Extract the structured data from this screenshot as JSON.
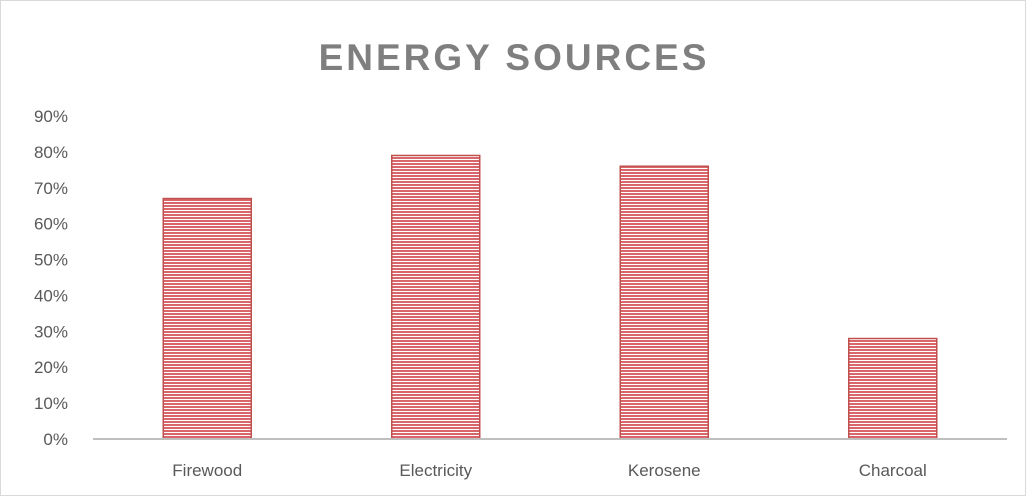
{
  "chart_data": {
    "type": "bar",
    "title": "ENERGY SOURCES",
    "categories": [
      "Firewood",
      "Electricity",
      "Kerosene",
      "Charcoal"
    ],
    "values": [
      0.67,
      0.79,
      0.76,
      0.28
    ],
    "ylim": [
      0,
      0.9
    ],
    "yticks": [
      "0%",
      "10%",
      "20%",
      "30%",
      "40%",
      "50%",
      "60%",
      "70%",
      "80%",
      "90%"
    ],
    "xlabel": "",
    "ylabel": "",
    "grid": false,
    "legend": "none",
    "bar_color": "#c0504d",
    "bar_pattern": "horizontal-lines"
  }
}
